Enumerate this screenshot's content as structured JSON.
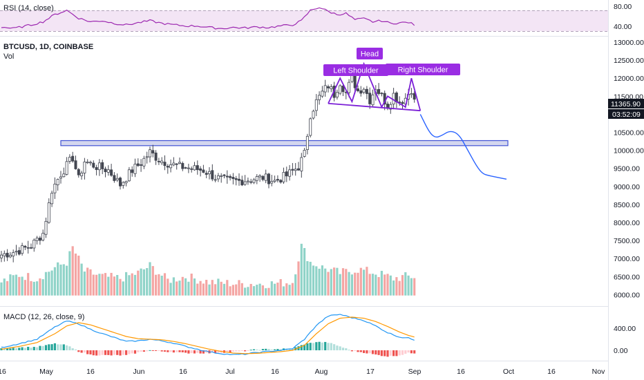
{
  "colors": {
    "up": "#26a69a",
    "down": "#ef5350",
    "candle": "#434651",
    "vol_up": "#8fd3c8",
    "vol_down": "#f4a5a3",
    "pattern": "#7b1fd6",
    "pattern_label_bg": "#9a2de3",
    "zone_fill": "#c5cae9",
    "zone_stroke": "#3f51d4",
    "forecast": "#2962ff",
    "rsi": "#9c27b0",
    "rsi_band": "#f3e5f5",
    "macd": "#2196f3",
    "signal": "#ff9800",
    "price_tag": "#131722"
  },
  "header": {
    "symbol": "BTCUSD, 1D, COINBASE",
    "volume_label": "Vol"
  },
  "rsi_panel": {
    "title": "RSI (14, close)",
    "ticks": [
      "80.00",
      "40.00"
    ]
  },
  "macd_panel": {
    "title": "MACD (12, 26, close, 9)",
    "ticks": [
      "400.00",
      "0.00"
    ]
  },
  "price_tags": {
    "last_price": "11365.90",
    "countdown": "03:52:09"
  },
  "annotations": {
    "head": "Head",
    "left_shoulder": "Left Shoulder",
    "right_shoulder": "Right Shoulder"
  },
  "chart_data": {
    "type": "candlestick",
    "price_axis": {
      "ticks": [
        "13000.00",
        "12500.00",
        "12000.00",
        "11500.00",
        "10500.00",
        "10000.00",
        "9500.00",
        "9000.00",
        "8500.00",
        "8000.00",
        "7500.00",
        "7000.00",
        "6500.00",
        "6000.00"
      ],
      "range": [
        5950,
        13050
      ]
    },
    "time_axis": {
      "ticks": [
        "16",
        "May",
        "16",
        "Jun",
        "16",
        "Jul",
        "16",
        "Aug",
        "17",
        "Sep",
        "16",
        "Oct",
        "16",
        "Nov"
      ]
    },
    "close_anchors": [
      [
        0,
        7100
      ],
      [
        5,
        7200
      ],
      [
        10,
        7350
      ],
      [
        14,
        7700
      ],
      [
        17,
        8900
      ],
      [
        20,
        9350
      ],
      [
        24,
        9800
      ],
      [
        26,
        9200
      ],
      [
        28,
        9700
      ],
      [
        32,
        9550
      ],
      [
        36,
        9450
      ],
      [
        40,
        9050
      ],
      [
        44,
        9450
      ],
      [
        47,
        9650
      ],
      [
        50,
        9950
      ],
      [
        53,
        9750
      ],
      [
        56,
        9650
      ],
      [
        60,
        9550
      ],
      [
        64,
        9500
      ],
      [
        68,
        9450
      ],
      [
        72,
        9250
      ],
      [
        76,
        9150
      ],
      [
        80,
        9150
      ],
      [
        84,
        9200
      ],
      [
        88,
        9250
      ],
      [
        92,
        9150
      ],
      [
        96,
        9300
      ],
      [
        100,
        9550
      ],
      [
        102,
        9900
      ],
      [
        104,
        11000
      ],
      [
        106,
        11350
      ],
      [
        108,
        11600
      ],
      [
        110,
        11800
      ],
      [
        112,
        11550
      ],
      [
        114,
        11900
      ],
      [
        116,
        11600
      ],
      [
        118,
        12000
      ],
      [
        120,
        11650
      ],
      [
        122,
        11750
      ],
      [
        124,
        11400
      ],
      [
        126,
        11750
      ],
      [
        128,
        11500
      ],
      [
        130,
        11250
      ],
      [
        132,
        11550
      ],
      [
        134,
        11350
      ],
      [
        136,
        11450
      ],
      [
        138,
        11700
      ],
      [
        139,
        11350
      ]
    ],
    "volume_anchors": [
      [
        0,
        6350
      ],
      [
        6,
        6550
      ],
      [
        12,
        6450
      ],
      [
        18,
        6750
      ],
      [
        22,
        6900
      ],
      [
        24,
        7300
      ],
      [
        28,
        6650
      ],
      [
        34,
        6500
      ],
      [
        40,
        6450
      ],
      [
        46,
        6600
      ],
      [
        50,
        6800
      ],
      [
        56,
        6400
      ],
      [
        62,
        6500
      ],
      [
        70,
        6350
      ],
      [
        80,
        6300
      ],
      [
        90,
        6300
      ],
      [
        98,
        6350
      ],
      [
        101,
        7350
      ],
      [
        104,
        6900
      ],
      [
        108,
        6750
      ],
      [
        114,
        6600
      ],
      [
        120,
        6700
      ],
      [
        126,
        6600
      ],
      [
        132,
        6450
      ],
      [
        136,
        6500
      ],
      [
        139,
        6500
      ]
    ],
    "resistance_zone": [
      10130,
      10270
    ],
    "head_and_shoulders": [
      [
        110,
        11300
      ],
      [
        114,
        12000
      ],
      [
        118,
        11350
      ],
      [
        122,
        12400
      ],
      [
        128,
        11200
      ],
      [
        130,
        11500
      ],
      [
        136,
        11200
      ],
      [
        138,
        12000
      ],
      [
        141,
        11100
      ]
    ],
    "neckline": [
      [
        110,
        11300
      ],
      [
        141,
        11100
      ]
    ],
    "forecast_path": [
      [
        141,
        11000
      ],
      [
        144,
        10500
      ],
      [
        146,
        10350
      ],
      [
        148,
        10400
      ],
      [
        151,
        10550
      ],
      [
        154,
        10450
      ],
      [
        157,
        10000
      ],
      [
        160,
        9550
      ],
      [
        162,
        9350
      ],
      [
        164,
        9300
      ],
      [
        167,
        9250
      ],
      [
        170,
        9200
      ]
    ],
    "rsi_range": [
      38,
      85
    ],
    "rsi_anchors": [
      [
        0,
        48
      ],
      [
        4,
        45
      ],
      [
        10,
        52
      ],
      [
        14,
        58
      ],
      [
        18,
        72
      ],
      [
        22,
        80
      ],
      [
        26,
        65
      ],
      [
        30,
        58
      ],
      [
        34,
        60
      ],
      [
        38,
        55
      ],
      [
        42,
        52
      ],
      [
        46,
        56
      ],
      [
        50,
        60
      ],
      [
        54,
        55
      ],
      [
        58,
        52
      ],
      [
        62,
        50
      ],
      [
        66,
        50
      ],
      [
        70,
        47
      ],
      [
        74,
        45
      ],
      [
        78,
        47
      ],
      [
        82,
        46
      ],
      [
        86,
        48
      ],
      [
        90,
        47
      ],
      [
        94,
        50
      ],
      [
        98,
        52
      ],
      [
        101,
        60
      ],
      [
        104,
        80
      ],
      [
        107,
        86
      ],
      [
        110,
        78
      ],
      [
        113,
        72
      ],
      [
        116,
        74
      ],
      [
        119,
        62
      ],
      [
        122,
        64
      ],
      [
        125,
        58
      ],
      [
        128,
        60
      ],
      [
        131,
        55
      ],
      [
        134,
        56
      ],
      [
        137,
        57
      ],
      [
        139,
        52
      ]
    ],
    "macd_range": [
      -150,
      700
    ],
    "macd_anchors": [
      [
        0,
        50
      ],
      [
        6,
        120
      ],
      [
        12,
        200
      ],
      [
        18,
        420
      ],
      [
        22,
        530
      ],
      [
        26,
        480
      ],
      [
        30,
        380
      ],
      [
        34,
        300
      ],
      [
        38,
        230
      ],
      [
        42,
        160
      ],
      [
        46,
        170
      ],
      [
        50,
        200
      ],
      [
        54,
        170
      ],
      [
        58,
        130
      ],
      [
        62,
        70
      ],
      [
        66,
        20
      ],
      [
        70,
        -30
      ],
      [
        74,
        -60
      ],
      [
        78,
        -80
      ],
      [
        82,
        -70
      ],
      [
        86,
        -40
      ],
      [
        90,
        -20
      ],
      [
        94,
        0
      ],
      [
        98,
        30
      ],
      [
        102,
        200
      ],
      [
        106,
        450
      ],
      [
        110,
        620
      ],
      [
        114,
        650
      ],
      [
        118,
        590
      ],
      [
        122,
        540
      ],
      [
        126,
        440
      ],
      [
        130,
        320
      ],
      [
        134,
        240
      ],
      [
        137,
        220
      ],
      [
        139,
        190
      ]
    ],
    "signal_anchors": [
      [
        0,
        20
      ],
      [
        6,
        70
      ],
      [
        12,
        140
      ],
      [
        18,
        300
      ],
      [
        22,
        440
      ],
      [
        26,
        500
      ],
      [
        30,
        460
      ],
      [
        34,
        390
      ],
      [
        38,
        320
      ],
      [
        42,
        250
      ],
      [
        46,
        210
      ],
      [
        50,
        200
      ],
      [
        54,
        190
      ],
      [
        58,
        160
      ],
      [
        62,
        120
      ],
      [
        66,
        70
      ],
      [
        70,
        20
      ],
      [
        74,
        -20
      ],
      [
        78,
        -50
      ],
      [
        82,
        -60
      ],
      [
        86,
        -55
      ],
      [
        90,
        -40
      ],
      [
        94,
        -25
      ],
      [
        98,
        0
      ],
      [
        102,
        90
      ],
      [
        106,
        300
      ],
      [
        110,
        480
      ],
      [
        114,
        580
      ],
      [
        118,
        600
      ],
      [
        122,
        580
      ],
      [
        126,
        520
      ],
      [
        130,
        430
      ],
      [
        134,
        330
      ],
      [
        137,
        270
      ],
      [
        139,
        240
      ]
    ]
  }
}
